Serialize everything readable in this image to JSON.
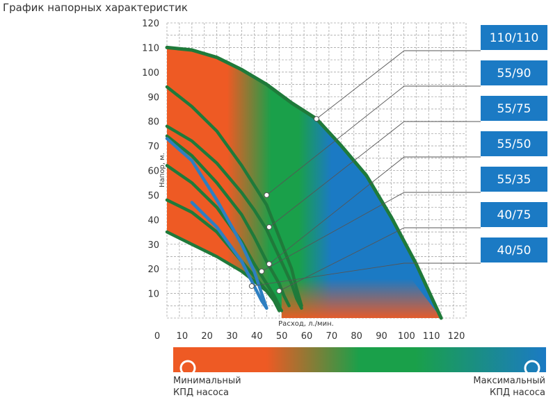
{
  "chart_data": {
    "type": "line",
    "title": "График напорных характеристик",
    "xlabel": "Расход, л./мин.",
    "ylabel": "Напор, м.",
    "xlim": [
      0,
      120
    ],
    "ylim": [
      0,
      120
    ],
    "x_ticks": [
      0,
      10,
      20,
      30,
      40,
      50,
      60,
      70,
      80,
      90,
      100,
      110,
      120
    ],
    "y_ticks": [
      10,
      20,
      30,
      40,
      50,
      60,
      70,
      80,
      90,
      100,
      110,
      120
    ],
    "grid": true,
    "legend_position": "right",
    "series": [
      {
        "name": "110/110",
        "color": "#1f7a3a",
        "points": [
          [
            0,
            110
          ],
          [
            10,
            109
          ],
          [
            20,
            106
          ],
          [
            30,
            101
          ],
          [
            40,
            95
          ],
          [
            50,
            87.5
          ],
          [
            60,
            81
          ],
          [
            70,
            70
          ],
          [
            80,
            58
          ],
          [
            90,
            41
          ],
          [
            100,
            22
          ],
          [
            110,
            0
          ]
        ]
      },
      {
        "name": "55/90",
        "color": "#1f7a3a",
        "points": [
          [
            0,
            94
          ],
          [
            10,
            86
          ],
          [
            20,
            76
          ],
          [
            30,
            62
          ],
          [
            35,
            54
          ],
          [
            40,
            46
          ],
          [
            45,
            33
          ],
          [
            50,
            20
          ],
          [
            52,
            12
          ],
          [
            54,
            5
          ]
        ]
      },
      {
        "name": "55/75",
        "color": "#1f7a3a",
        "points": [
          [
            0,
            78
          ],
          [
            10,
            72
          ],
          [
            20,
            63
          ],
          [
            30,
            51
          ],
          [
            35,
            44
          ],
          [
            40,
            36
          ],
          [
            45,
            25
          ],
          [
            50,
            14
          ],
          [
            52,
            8
          ],
          [
            54,
            4
          ]
        ]
      },
      {
        "name": "55/50",
        "color": "#1f7a3a",
        "points": [
          [
            0,
            74
          ],
          [
            10,
            66
          ],
          [
            20,
            55
          ],
          [
            30,
            42
          ],
          [
            35,
            33
          ],
          [
            40,
            23
          ],
          [
            45,
            14
          ],
          [
            47,
            9
          ],
          [
            49,
            5
          ]
        ]
      },
      {
        "name": "55/35",
        "color": "#1f7a3a",
        "points": [
          [
            0,
            62
          ],
          [
            10,
            55
          ],
          [
            20,
            45
          ],
          [
            30,
            31
          ],
          [
            35,
            22
          ],
          [
            40,
            14
          ],
          [
            43,
            9
          ],
          [
            45,
            5
          ]
        ]
      },
      {
        "name": "40/75",
        "color": "#1f7a3a",
        "points": [
          [
            0,
            48
          ],
          [
            10,
            43
          ],
          [
            20,
            35
          ],
          [
            30,
            23
          ],
          [
            35,
            17
          ],
          [
            40,
            11
          ],
          [
            43,
            7
          ],
          [
            45,
            3
          ]
        ]
      },
      {
        "name": "40/50",
        "color": "#1f7a3a",
        "points": [
          [
            0,
            35
          ],
          [
            10,
            30
          ],
          [
            20,
            25
          ],
          [
            30,
            19
          ],
          [
            40,
            11
          ],
          [
            44,
            6
          ],
          [
            46,
            3
          ]
        ]
      },
      {
        "color": "#2e7fc1",
        "points": [
          [
            0,
            73
          ],
          [
            10,
            64
          ],
          [
            20,
            48
          ],
          [
            30,
            30
          ],
          [
            35,
            19
          ],
          [
            40,
            4
          ]
        ]
      },
      {
        "color": "#2e7fc1",
        "points": [
          [
            10,
            47
          ],
          [
            20,
            37
          ],
          [
            30,
            23
          ],
          [
            34,
            15
          ],
          [
            38,
            7
          ],
          [
            40,
            4
          ]
        ]
      }
    ],
    "callouts": [
      {
        "label": "110/110",
        "point": [
          60,
          81
        ]
      },
      {
        "label": "55/90",
        "point": [
          40,
          50
        ]
      },
      {
        "label": "55/75",
        "point": [
          41,
          37
        ]
      },
      {
        "label": "55/50",
        "point": [
          41,
          22
        ]
      },
      {
        "label": "55/35",
        "point": [
          38,
          19
        ]
      },
      {
        "label": "40/75",
        "point": [
          45,
          11
        ]
      },
      {
        "label": "40/50",
        "point": [
          34,
          13
        ]
      }
    ],
    "colorbar": {
      "min_label": "Минимальный КПД насоса",
      "max_label": "Максимальный КПД насоса",
      "colors": [
        "#ee5a24",
        "#1aa04a",
        "#1b7ac4"
      ]
    }
  },
  "caption": {
    "min_line1": "Минимальный",
    "min_line2": "КПД насоса",
    "max_line1": "Максимальный",
    "max_line2": "КПД насоса"
  }
}
